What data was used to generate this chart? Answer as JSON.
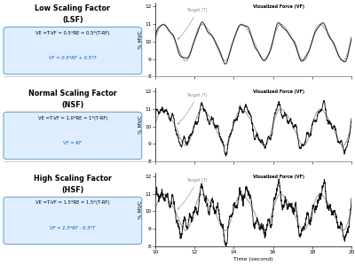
{
  "panels": [
    {
      "title_line1": "Low Scaling Factor",
      "title_line2": "(LSF)",
      "eq_black": "VE =T-VF = 0.5*RE = 0.5*(T-RF)",
      "eq_blue": "VF = 0.5*RF + 0.5*T",
      "noise_amp": 0.18,
      "noise_freq_extra": 0.0,
      "hf_amp": 0.0
    },
    {
      "title_line1": "Normal Scaling Factor",
      "title_line2": "(NSF)",
      "eq_black": "VE =T-VF = 1.0*RE = 1*(T-RF)",
      "eq_blue": "VF = RF",
      "noise_amp": 0.38,
      "noise_freq_extra": 0.15,
      "hf_amp": 0.12
    },
    {
      "title_line1": "High Scaling Factor",
      "title_line2": "(HSF)",
      "eq_black": "VE =T-VF = 1.5*RE = 1.5*(T-RF)",
      "eq_blue": "VF = 1.5*RF - 0.5*T",
      "noise_amp": 0.6,
      "noise_freq_extra": 0.25,
      "hf_amp": 0.22
    }
  ],
  "xlim": [
    10,
    20
  ],
  "ylim": [
    8,
    12.2
  ],
  "yticks": [
    8,
    9,
    10,
    11,
    12
  ],
  "xticks": [
    10,
    12,
    14,
    16,
    18,
    20
  ],
  "xlabel": "Time (second)",
  "ylabel": "% MVC",
  "target_color": "#aaaaaa",
  "vf_color": "#111111",
  "box_facecolor": "#deeeff",
  "box_edgecolor": "#6699cc",
  "background_color": "#ffffff",
  "divider_color": "#bbbbbb",
  "ann_target_color": "#888888",
  "ann_vf_color": "#000000"
}
